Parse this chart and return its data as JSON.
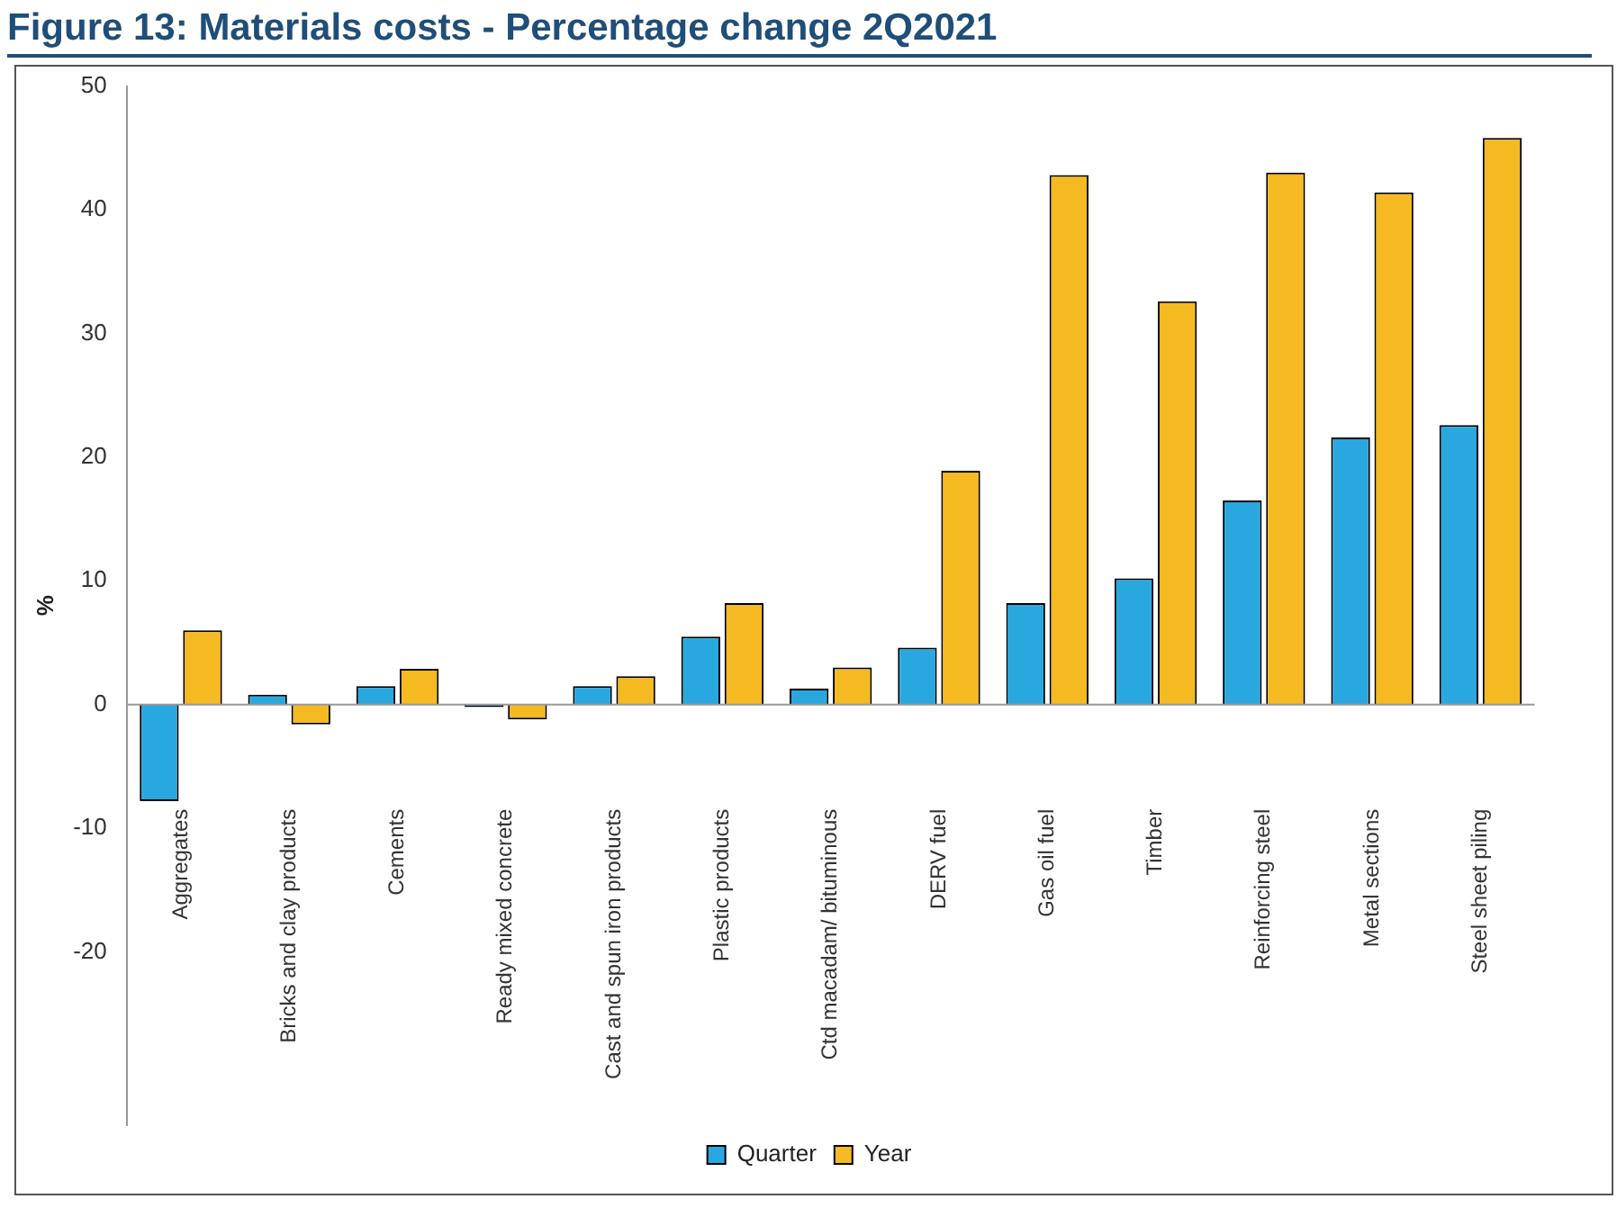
{
  "chart_data": {
    "type": "bar",
    "title": "Figure 13: Materials costs - Percentage change 2Q2021",
    "ylabel": "%",
    "categories": [
      "Aggregates",
      "Bricks and clay products",
      "Cements",
      "Ready mixed concrete",
      "Cast and spun iron products",
      "Plastic products",
      "Ctd macadam/ bituminous",
      "DERV fuel",
      "Gas oil fuel",
      "Timber",
      "Reinforcing steel",
      "Metal sections",
      "Steel sheet piling"
    ],
    "series": [
      {
        "name": "Quarter",
        "color": "#29a8e0",
        "values": [
          -7.8,
          0.8,
          1.5,
          -0.2,
          1.5,
          5.5,
          1.3,
          4.6,
          8.2,
          10.2,
          16.5,
          21.6,
          22.6
        ]
      },
      {
        "name": "Year",
        "color": "#f5b922",
        "values": [
          6,
          -1.6,
          2.9,
          -1.2,
          2.3,
          8.2,
          3,
          18.9,
          42.8,
          32.6,
          43,
          41.4,
          45.8
        ]
      }
    ],
    "ylim": [
      -34,
      50
    ],
    "yticks": [
      -20,
      -10,
      0,
      10,
      20,
      30,
      40,
      50
    ],
    "grid": false,
    "ref_lines": [
      {
        "axis": "y",
        "value": 0,
        "color": "#999999"
      }
    ],
    "legend": "bottom"
  }
}
